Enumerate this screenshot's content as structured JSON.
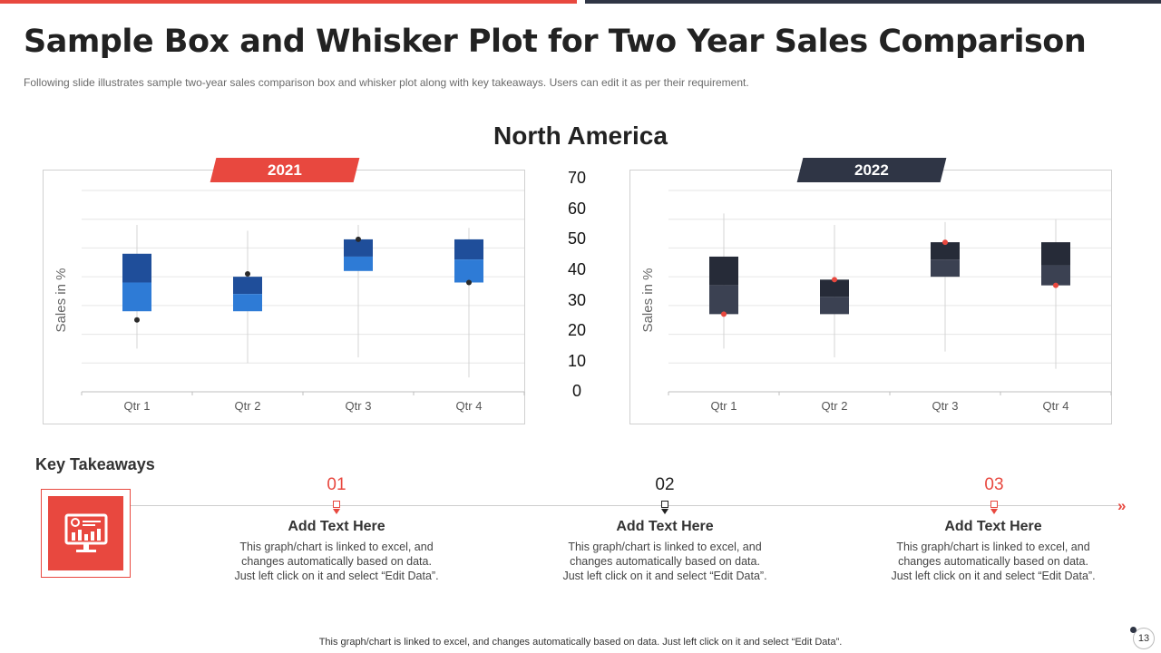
{
  "header": {
    "title": "Sample Box and Whisker Plot for Two Year Sales Comparison",
    "subtitle": "Following slide illustrates sample two-year sales comparison box and whisker plot along with key takeaways. Users can edit it as per their requirement.",
    "region": "North America"
  },
  "colors": {
    "accent": "#e8483f",
    "dark": "#2f3545",
    "blue_dark": "#1f4e9a",
    "blue_light": "#2e7bd6"
  },
  "center_axis": {
    "ticks": [
      "70",
      "60",
      "50",
      "40",
      "30",
      "20",
      "10",
      "0"
    ]
  },
  "chart_data": [
    {
      "type": "box",
      "tag": "2021",
      "ylabel": "Sales in %",
      "categories": [
        "Qtr 1",
        "Qtr 2",
        "Qtr 3",
        "Qtr 4"
      ],
      "ylim": [
        0,
        70
      ],
      "boxes": [
        {
          "low": 15,
          "q1": 28,
          "median": 38,
          "q3": 48,
          "high": 58,
          "point": 25
        },
        {
          "low": 10,
          "q1": 28,
          "median": 34,
          "q3": 40,
          "high": 56,
          "point": 41
        },
        {
          "low": 12,
          "q1": 42,
          "median": 47,
          "q3": 53,
          "high": 58,
          "point": 53
        },
        {
          "low": 5,
          "q1": 38,
          "median": 46,
          "q3": 53,
          "high": 57,
          "point": 38
        }
      ],
      "grid": true
    },
    {
      "type": "box",
      "tag": "2022",
      "ylabel": "Sales in %",
      "categories": [
        "Qtr 1",
        "Qtr 2",
        "Qtr 3",
        "Qtr 4"
      ],
      "ylim": [
        0,
        70
      ],
      "boxes": [
        {
          "low": 15,
          "q1": 27,
          "median": 37,
          "q3": 47,
          "high": 62,
          "point": 27
        },
        {
          "low": 12,
          "q1": 27,
          "median": 33,
          "q3": 39,
          "high": 58,
          "point": 39
        },
        {
          "low": 14,
          "q1": 40,
          "median": 46,
          "q3": 52,
          "high": 59,
          "point": 52
        },
        {
          "low": 8,
          "q1": 37,
          "median": 44,
          "q3": 52,
          "high": 60,
          "point": 37
        }
      ],
      "grid": true
    }
  ],
  "takeaways": {
    "title": "Key Takeaways",
    "icon": "monitor-chart-icon",
    "items": [
      {
        "number": "01",
        "color": "#e8483f",
        "heading": "Add Text Here",
        "body_lines": [
          "This graph/chart is linked to excel, and",
          "changes automatically based on data.",
          "Just left click on it and select “Edit Data”."
        ]
      },
      {
        "number": "02",
        "color": "#222222",
        "heading": "Add Text Here",
        "body_lines": [
          "This graph/chart is linked to excel, and",
          "changes automatically based on data.",
          "Just left click on it and select “Edit Data”."
        ]
      },
      {
        "number": "03",
        "color": "#e8483f",
        "heading": "Add Text Here",
        "body_lines": [
          "This graph/chart is linked to excel, and",
          "changes automatically based on data.",
          "Just left click on it and select “Edit Data”."
        ]
      }
    ],
    "arrow": "»"
  },
  "footer": {
    "note": "This graph/chart is linked to excel, and changes automatically based on data. Just left click on it and select “Edit Data”.",
    "page": "13"
  }
}
